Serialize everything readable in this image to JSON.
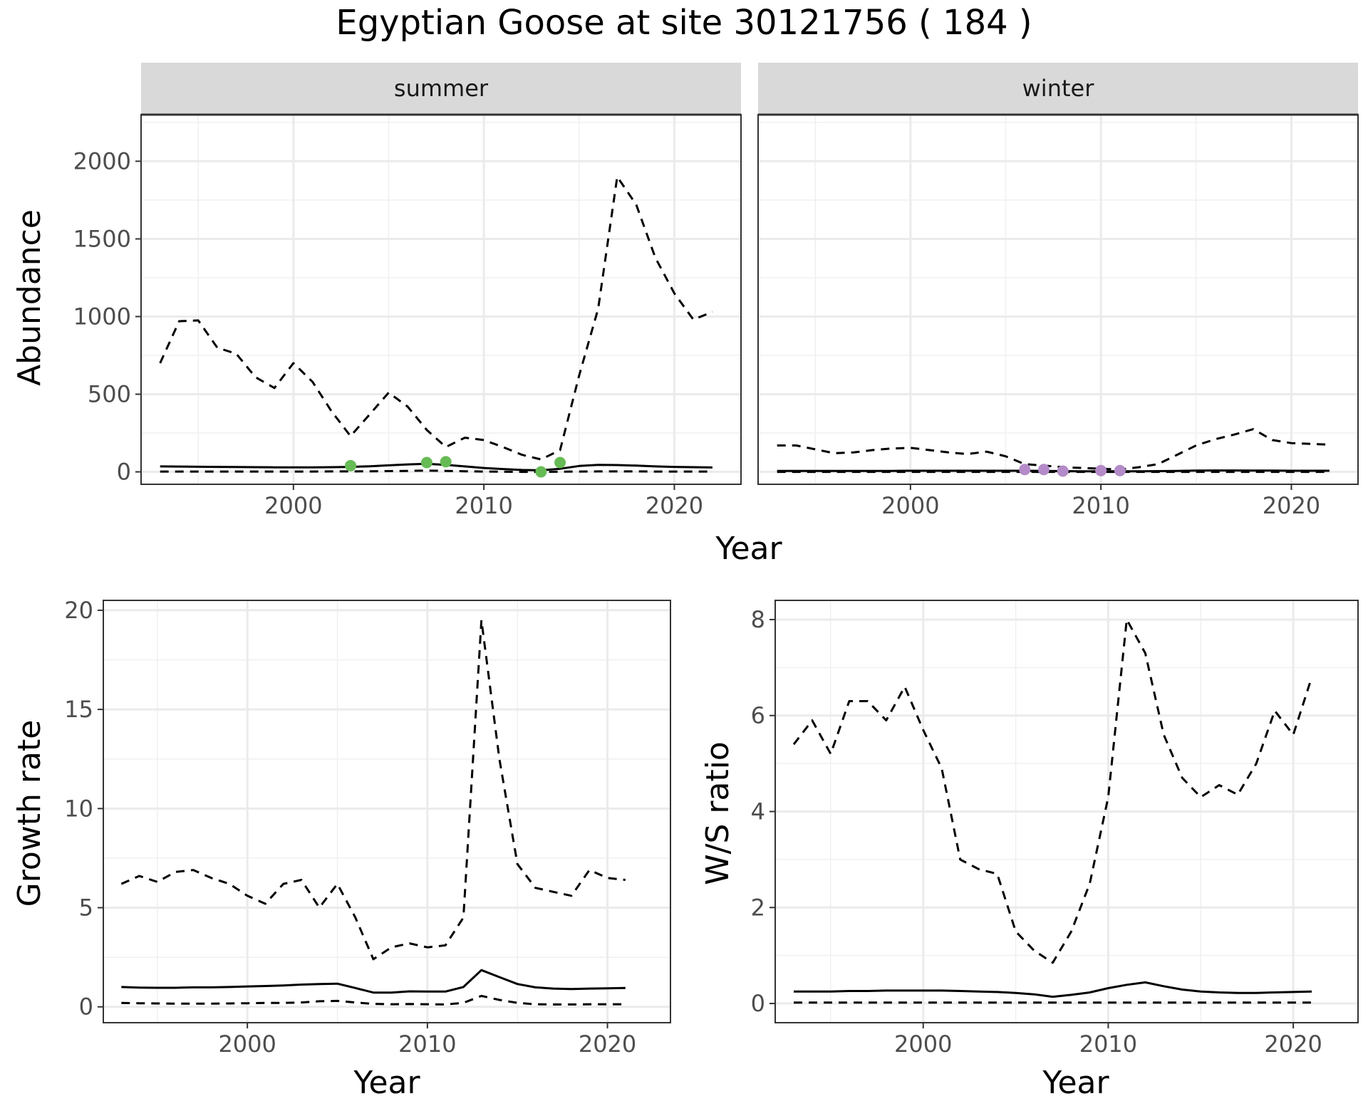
{
  "title": "Egyptian Goose at site 30121756 ( 184 )",
  "chart_data": [
    {
      "type": "line",
      "facet": "summer",
      "strip_label": "summer",
      "ylabel": "Abundance",
      "xlabel": "Year",
      "xlim": [
        1992,
        2023.5
      ],
      "ylim": [
        -80,
        2300
      ],
      "x_ticks": [
        2000,
        2010,
        2020
      ],
      "y_ticks": [
        0,
        500,
        1000,
        1500,
        2000
      ],
      "grid": true,
      "series": [
        {
          "style": "solid",
          "x": [
            1993,
            1994,
            1995,
            1996,
            1997,
            1998,
            1999,
            2000,
            2001,
            2002,
            2003,
            2004,
            2005,
            2006,
            2007,
            2008,
            2009,
            2010,
            2011,
            2012,
            2013,
            2014,
            2015,
            2016,
            2017,
            2018,
            2019,
            2020,
            2021,
            2022
          ],
          "y": [
            35,
            34,
            33,
            32,
            31,
            30,
            29,
            29,
            29,
            30,
            32,
            36,
            42,
            48,
            52,
            45,
            35,
            25,
            18,
            12,
            10,
            20,
            38,
            45,
            44,
            40,
            35,
            32,
            30,
            28
          ]
        },
        {
          "style": "dashed",
          "x": [
            1993,
            1994,
            1995,
            1996,
            1997,
            1998,
            1999,
            2000,
            2001,
            2002,
            2003,
            2004,
            2005,
            2006,
            2007,
            2008,
            2009,
            2010,
            2011,
            2012,
            2013,
            2014,
            2015,
            2016,
            2017,
            2018,
            2019,
            2020,
            2021,
            2022
          ],
          "y": [
            700,
            970,
            975,
            800,
            760,
            610,
            540,
            700,
            580,
            390,
            230,
            370,
            510,
            420,
            270,
            160,
            220,
            205,
            160,
            110,
            80,
            140,
            620,
            1050,
            1900,
            1720,
            1380,
            1150,
            980,
            1030
          ]
        },
        {
          "style": "dashed",
          "x": [
            1993,
            1994,
            1995,
            1996,
            1997,
            1998,
            1999,
            2000,
            2001,
            2002,
            2003,
            2004,
            2005,
            2006,
            2007,
            2008,
            2009,
            2010,
            2011,
            2012,
            2013,
            2014,
            2015,
            2016,
            2017,
            2018,
            2019,
            2020,
            2021,
            2022
          ],
          "y": [
            2,
            2,
            2,
            2,
            2,
            2,
            2,
            2,
            2,
            3,
            3,
            4,
            5,
            6,
            8,
            6,
            4,
            2,
            1,
            0,
            0,
            1,
            2,
            3,
            3,
            3,
            2,
            2,
            2,
            2
          ]
        }
      ],
      "points": {
        "color": "#66BB55",
        "x": [
          2003,
          2007,
          2008,
          2013,
          2014
        ],
        "y": [
          40,
          60,
          65,
          0,
          60
        ]
      }
    },
    {
      "type": "line",
      "facet": "winter",
      "strip_label": "winter",
      "ylabel": "",
      "xlabel": "Year",
      "xlim": [
        1992,
        2023.5
      ],
      "ylim": [
        -80,
        2300
      ],
      "x_ticks": [
        2000,
        2010,
        2020
      ],
      "y_ticks": [
        0,
        500,
        1000,
        1500,
        2000
      ],
      "grid": true,
      "series": [
        {
          "style": "solid",
          "x": [
            1993,
            1994,
            1995,
            1996,
            1997,
            1998,
            1999,
            2000,
            2001,
            2002,
            2003,
            2004,
            2005,
            2006,
            2007,
            2008,
            2009,
            2010,
            2011,
            2012,
            2013,
            2014,
            2015,
            2016,
            2017,
            2018,
            2019,
            2020,
            2021,
            2022
          ],
          "y": [
            6,
            6,
            6,
            6,
            6,
            6,
            6,
            7,
            7,
            7,
            7,
            7,
            7,
            7,
            6,
            5,
            4,
            4,
            4,
            4,
            5,
            6,
            8,
            9,
            9,
            8,
            8,
            7,
            7,
            7
          ]
        },
        {
          "style": "dashed",
          "x": [
            1993,
            1994,
            1995,
            1996,
            1997,
            1998,
            1999,
            2000,
            2001,
            2002,
            2003,
            2004,
            2005,
            2006,
            2007,
            2008,
            2009,
            2010,
            2011,
            2012,
            2013,
            2014,
            2015,
            2016,
            2017,
            2018,
            2019,
            2020,
            2021,
            2022
          ],
          "y": [
            170,
            170,
            145,
            120,
            125,
            140,
            150,
            155,
            140,
            125,
            115,
            130,
            100,
            50,
            40,
            30,
            25,
            20,
            15,
            30,
            50,
            110,
            170,
            210,
            240,
            275,
            205,
            185,
            180,
            175
          ]
        },
        {
          "style": "dashed",
          "x": [
            1993,
            1994,
            1995,
            1996,
            1997,
            1998,
            1999,
            2000,
            2001,
            2002,
            2003,
            2004,
            2005,
            2006,
            2007,
            2008,
            2009,
            2010,
            2011,
            2012,
            2013,
            2014,
            2015,
            2016,
            2017,
            2018,
            2019,
            2020,
            2021,
            2022
          ],
          "y": [
            0,
            0,
            0,
            0,
            0,
            0,
            0,
            0,
            0,
            0,
            0,
            0,
            0,
            0,
            0,
            0,
            0,
            0,
            0,
            0,
            0,
            0,
            0,
            0,
            0,
            0,
            0,
            0,
            0,
            0
          ]
        }
      ],
      "points": {
        "color": "#B48BC8",
        "x": [
          2006,
          2007,
          2008,
          2010,
          2011
        ],
        "y": [
          15,
          15,
          5,
          8,
          8
        ]
      }
    },
    {
      "type": "line",
      "ylabel": "Growth rate",
      "xlabel": "Year",
      "xlim": [
        1992,
        2023.5
      ],
      "ylim": [
        -0.8,
        20.5
      ],
      "x_ticks": [
        2000,
        2010,
        2020
      ],
      "y_ticks": [
        0,
        5,
        10,
        15,
        20
      ],
      "grid": true,
      "series": [
        {
          "style": "solid",
          "x": [
            1993,
            1994,
            1995,
            1996,
            1997,
            1998,
            1999,
            2000,
            2001,
            2002,
            2003,
            2004,
            2005,
            2006,
            2007,
            2008,
            2009,
            2010,
            2011,
            2012,
            2013,
            2014,
            2015,
            2016,
            2017,
            2018,
            2019,
            2020,
            2021
          ],
          "y": [
            1.0,
            0.97,
            0.96,
            0.96,
            0.98,
            0.98,
            1.0,
            1.03,
            1.05,
            1.08,
            1.12,
            1.15,
            1.17,
            0.95,
            0.72,
            0.72,
            0.78,
            0.77,
            0.77,
            1.0,
            1.85,
            1.5,
            1.15,
            0.98,
            0.92,
            0.9,
            0.92,
            0.93,
            0.95
          ]
        },
        {
          "style": "dashed",
          "x": [
            1993,
            1994,
            1995,
            1996,
            1997,
            1998,
            1999,
            2000,
            2001,
            2002,
            2003,
            2004,
            2005,
            2006,
            2007,
            2008,
            2009,
            2010,
            2011,
            2012,
            2013,
            2014,
            2015,
            2016,
            2017,
            2018,
            2019,
            2020,
            2021
          ],
          "y": [
            6.2,
            6.6,
            6.3,
            6.8,
            6.9,
            6.5,
            6.2,
            5.6,
            5.2,
            6.2,
            6.4,
            5.0,
            6.2,
            4.5,
            2.4,
            3.0,
            3.2,
            3.0,
            3.1,
            4.5,
            19.5,
            12.5,
            7.2,
            6.0,
            5.8,
            5.6,
            6.9,
            6.5,
            6.4
          ]
        },
        {
          "style": "dashed",
          "x": [
            1993,
            1994,
            1995,
            1996,
            1997,
            1998,
            1999,
            2000,
            2001,
            2002,
            2003,
            2004,
            2005,
            2006,
            2007,
            2008,
            2009,
            2010,
            2011,
            2012,
            2013,
            2014,
            2015,
            2016,
            2017,
            2018,
            2019,
            2020,
            2021
          ],
          "y": [
            0.2,
            0.18,
            0.17,
            0.16,
            0.16,
            0.16,
            0.17,
            0.18,
            0.2,
            0.2,
            0.22,
            0.28,
            0.3,
            0.22,
            0.15,
            0.13,
            0.14,
            0.13,
            0.12,
            0.2,
            0.55,
            0.35,
            0.2,
            0.13,
            0.12,
            0.12,
            0.13,
            0.13,
            0.13
          ]
        }
      ]
    },
    {
      "type": "line",
      "ylabel": "W/S ratio",
      "xlabel": "Year",
      "xlim": [
        1992,
        2023.5
      ],
      "ylim": [
        -0.4,
        8.4
      ],
      "x_ticks": [
        2000,
        2010,
        2020
      ],
      "y_ticks": [
        0,
        2,
        4,
        6,
        8
      ],
      "grid": true,
      "series": [
        {
          "style": "solid",
          "x": [
            1993,
            1994,
            1995,
            1996,
            1997,
            1998,
            1999,
            2000,
            2001,
            2002,
            2003,
            2004,
            2005,
            2006,
            2007,
            2008,
            2009,
            2010,
            2011,
            2012,
            2013,
            2014,
            2015,
            2016,
            2017,
            2018,
            2019,
            2020,
            2021
          ],
          "y": [
            0.25,
            0.25,
            0.25,
            0.26,
            0.26,
            0.27,
            0.27,
            0.27,
            0.27,
            0.26,
            0.25,
            0.24,
            0.22,
            0.19,
            0.14,
            0.18,
            0.23,
            0.32,
            0.39,
            0.44,
            0.36,
            0.29,
            0.25,
            0.23,
            0.22,
            0.22,
            0.23,
            0.24,
            0.25
          ]
        },
        {
          "style": "dashed",
          "x": [
            1993,
            1994,
            1995,
            1996,
            1997,
            1998,
            1999,
            2000,
            2001,
            2002,
            2003,
            2004,
            2005,
            2006,
            2007,
            2008,
            2009,
            2010,
            2011,
            2012,
            2013,
            2014,
            2015,
            2016,
            2017,
            2018,
            2019,
            2020,
            2021
          ],
          "y": [
            5.4,
            5.9,
            5.2,
            6.3,
            6.3,
            5.9,
            6.6,
            5.7,
            4.9,
            3.0,
            2.8,
            2.7,
            1.5,
            1.1,
            0.85,
            1.5,
            2.5,
            4.3,
            8.0,
            7.3,
            5.6,
            4.7,
            4.3,
            4.55,
            4.35,
            5.0,
            6.1,
            5.6,
            6.8
          ]
        },
        {
          "style": "dashed",
          "x": [
            1993,
            1994,
            1995,
            1996,
            1997,
            1998,
            1999,
            2000,
            2001,
            2002,
            2003,
            2004,
            2005,
            2006,
            2007,
            2008,
            2009,
            2010,
            2011,
            2012,
            2013,
            2014,
            2015,
            2016,
            2017,
            2018,
            2019,
            2020,
            2021
          ],
          "y": [
            0.02,
            0.02,
            0.02,
            0.02,
            0.02,
            0.02,
            0.02,
            0.02,
            0.02,
            0.02,
            0.02,
            0.02,
            0.02,
            0.02,
            0.02,
            0.02,
            0.02,
            0.02,
            0.02,
            0.02,
            0.02,
            0.02,
            0.02,
            0.02,
            0.02,
            0.02,
            0.02,
            0.02,
            0.02
          ]
        }
      ]
    }
  ]
}
